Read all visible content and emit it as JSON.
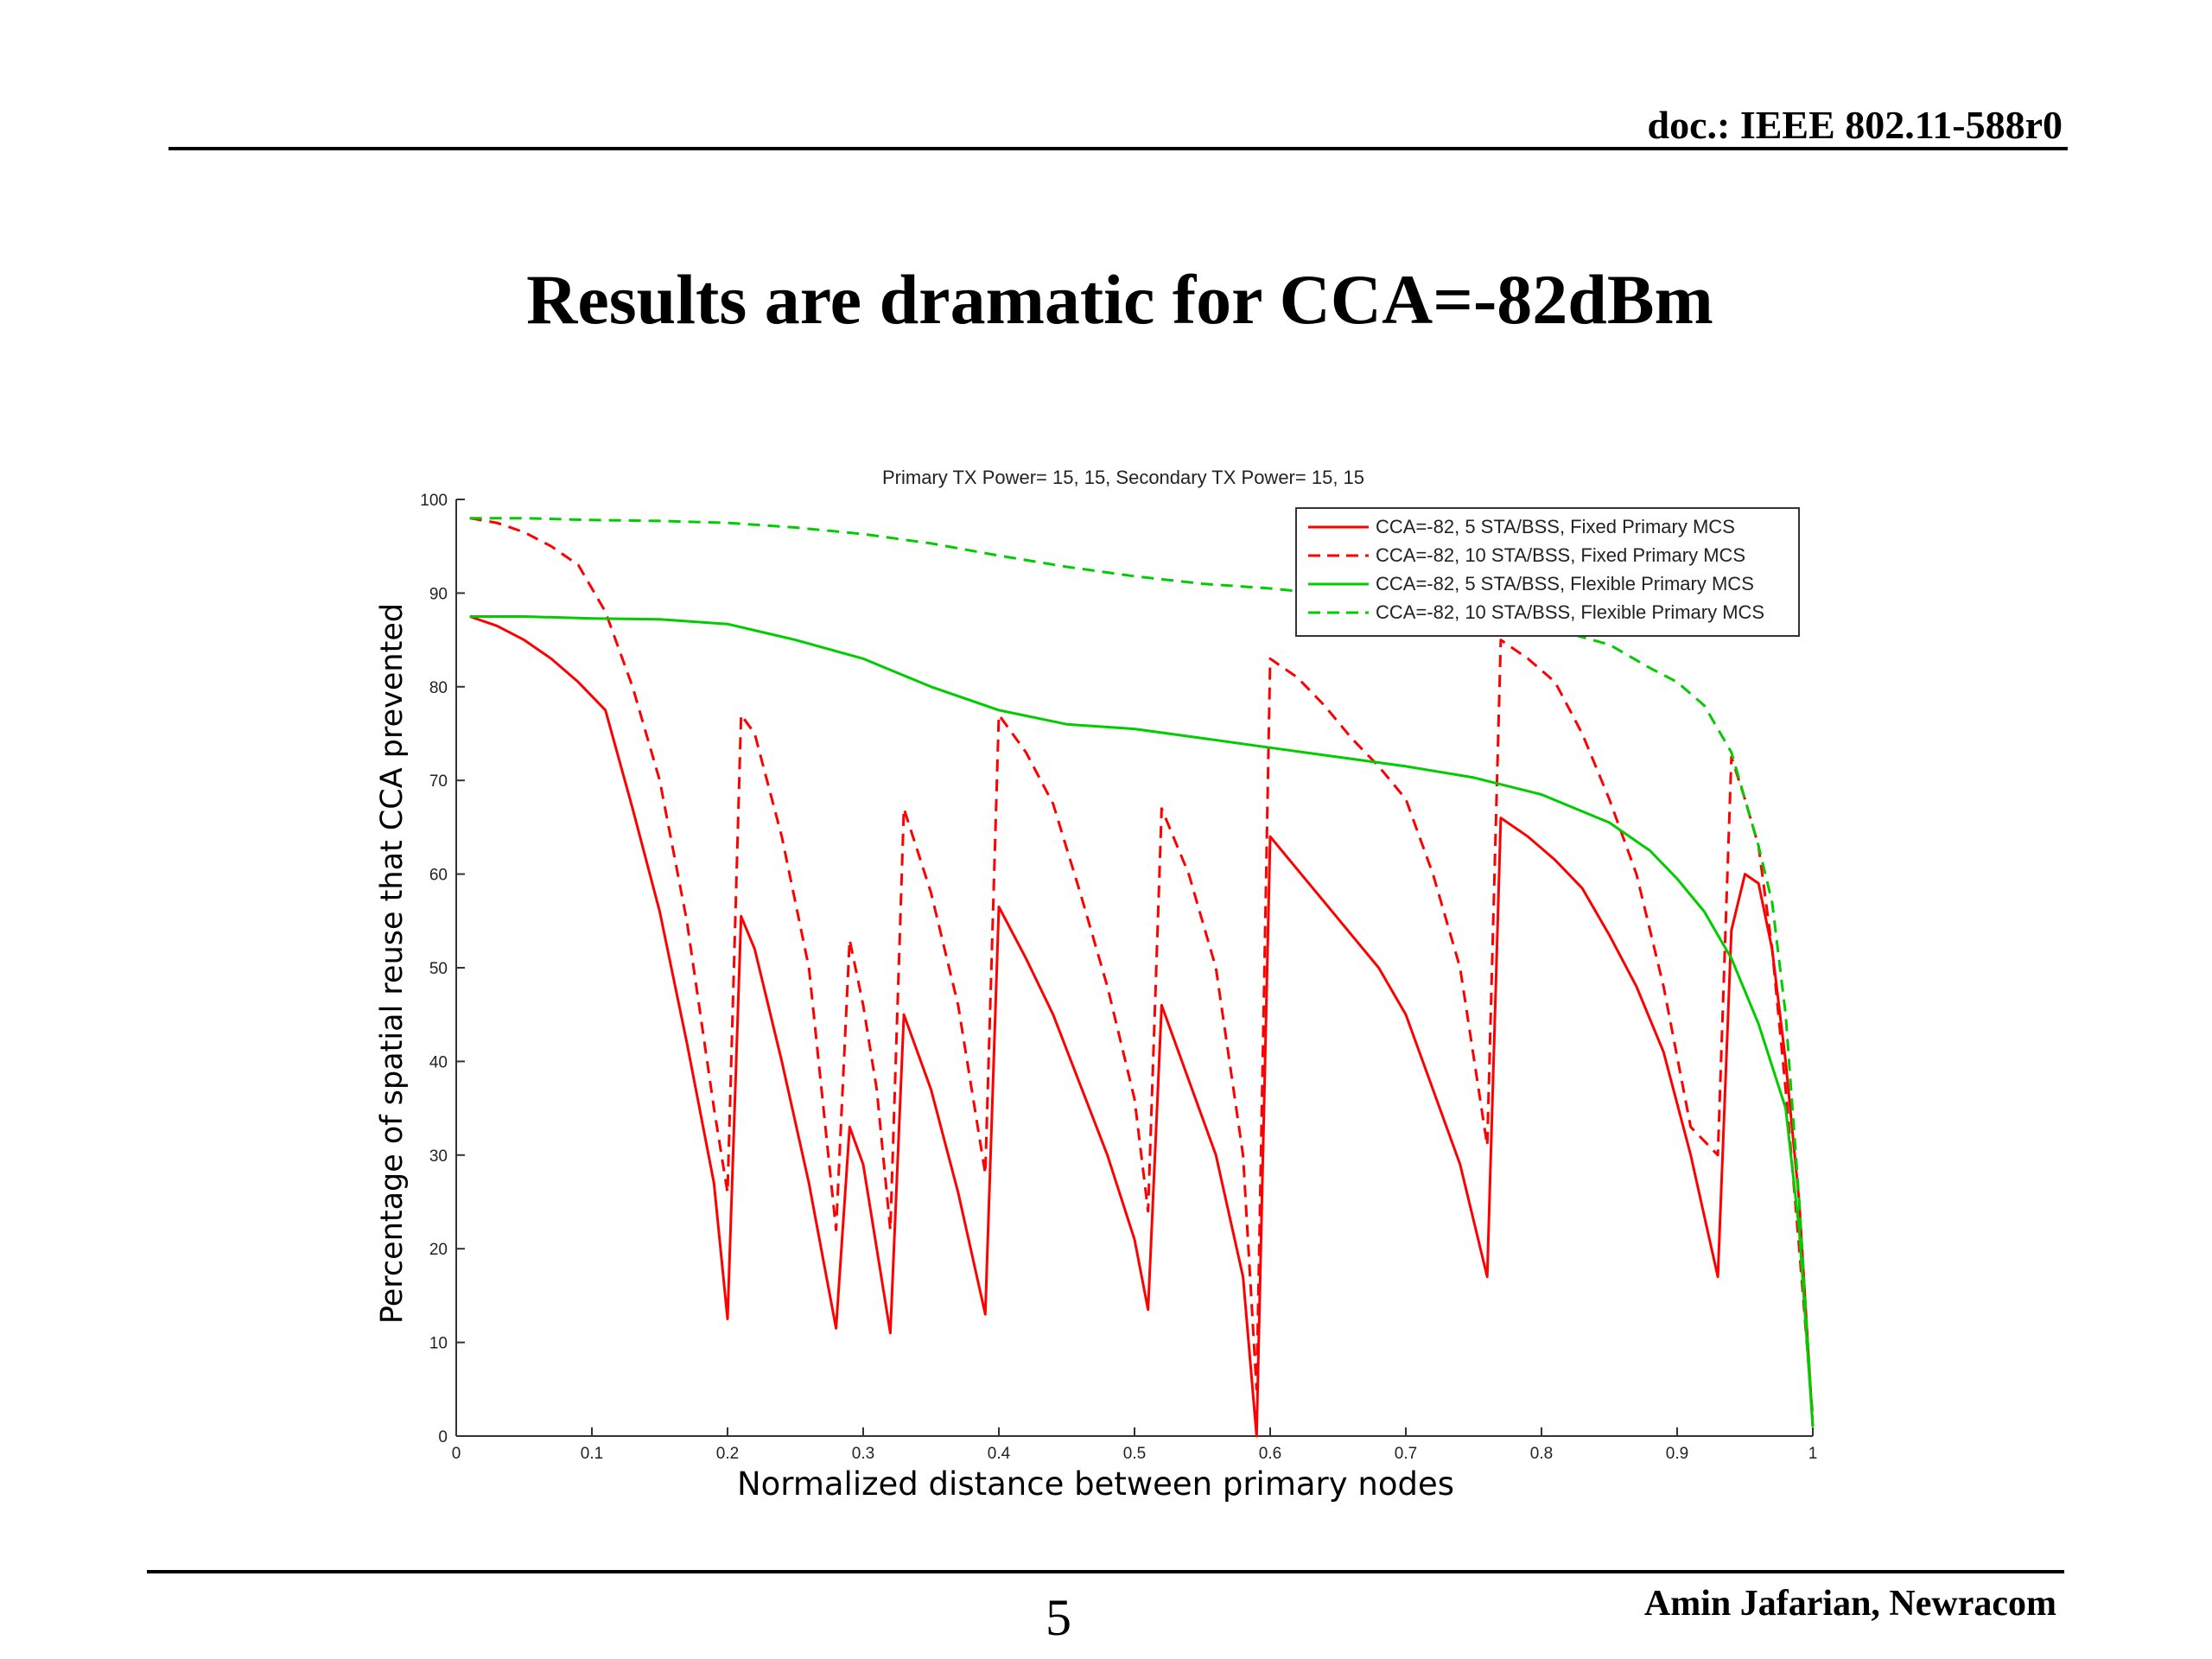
{
  "header": {
    "doc_label": "doc.: IEEE 802.11-588r0"
  },
  "slide": {
    "title": "Results are dramatic for CCA=-82dBm"
  },
  "footer": {
    "page_number": "5",
    "author": "Amin Jafarian, Newracom"
  },
  "colors": {
    "red": "#ff0000",
    "green": "#00cc00"
  },
  "chart_data": {
    "type": "line",
    "title": "Primary TX Power= 15, 15, Secondary TX Power= 15, 15",
    "xlabel": "Normalized distance between primary nodes",
    "ylabel": "Percentage of spatial reuse that CCA prevented",
    "xlim": [
      0,
      1
    ],
    "ylim": [
      0,
      100
    ],
    "xticks": [
      0,
      0.1,
      0.2,
      0.3,
      0.4,
      0.5,
      0.6,
      0.7,
      0.8,
      0.9,
      1
    ],
    "xtick_labels": [
      "0",
      "0.1",
      "0.2",
      "0.3",
      "0.4",
      "0.5",
      "0.6",
      "0.7",
      "0.8",
      "0.9",
      "1"
    ],
    "yticks": [
      0,
      10,
      20,
      30,
      40,
      50,
      60,
      70,
      80,
      90,
      100
    ],
    "ytick_labels": [
      "0",
      "10",
      "20",
      "30",
      "40",
      "50",
      "60",
      "70",
      "80",
      "90",
      "100"
    ],
    "grid": false,
    "legend_position": "top-right",
    "series": [
      {
        "name": "CCA=-82, 5 STA/BSS, Fixed Primary MCS",
        "color": "#ff0000",
        "dash": "solid",
        "points": [
          [
            0.01,
            87.5
          ],
          [
            0.03,
            86.5
          ],
          [
            0.05,
            85
          ],
          [
            0.07,
            83
          ],
          [
            0.09,
            80.5
          ],
          [
            0.11,
            77.5
          ],
          [
            0.13,
            67
          ],
          [
            0.15,
            56
          ],
          [
            0.17,
            42
          ],
          [
            0.19,
            27
          ],
          [
            0.2,
            12.5
          ],
          [
            0.21,
            55.5
          ],
          [
            0.22,
            52
          ],
          [
            0.24,
            40
          ],
          [
            0.26,
            27
          ],
          [
            0.28,
            11.5
          ],
          [
            0.29,
            33
          ],
          [
            0.3,
            29
          ],
          [
            0.32,
            11
          ],
          [
            0.33,
            45
          ],
          [
            0.35,
            37
          ],
          [
            0.37,
            26
          ],
          [
            0.39,
            13
          ],
          [
            0.4,
            56.5
          ],
          [
            0.42,
            51
          ],
          [
            0.44,
            45
          ],
          [
            0.46,
            37.5
          ],
          [
            0.48,
            30
          ],
          [
            0.5,
            21
          ],
          [
            0.51,
            13.5
          ],
          [
            0.52,
            46
          ],
          [
            0.54,
            38
          ],
          [
            0.56,
            30
          ],
          [
            0.58,
            17
          ],
          [
            0.59,
            0
          ],
          [
            0.6,
            64
          ],
          [
            0.62,
            60.5
          ],
          [
            0.64,
            57
          ],
          [
            0.66,
            53.5
          ],
          [
            0.68,
            50
          ],
          [
            0.7,
            45
          ],
          [
            0.72,
            37
          ],
          [
            0.74,
            29
          ],
          [
            0.76,
            17
          ],
          [
            0.77,
            66
          ],
          [
            0.79,
            64
          ],
          [
            0.81,
            61.5
          ],
          [
            0.83,
            58.5
          ],
          [
            0.85,
            53.5
          ],
          [
            0.87,
            48
          ],
          [
            0.89,
            41
          ],
          [
            0.91,
            30
          ],
          [
            0.93,
            17
          ],
          [
            0.94,
            54
          ],
          [
            0.95,
            60
          ],
          [
            0.96,
            59
          ],
          [
            0.97,
            52
          ],
          [
            0.98,
            40
          ],
          [
            0.99,
            25
          ],
          [
            1.0,
            1
          ]
        ]
      },
      {
        "name": "CCA=-82, 10 STA/BSS, Fixed Primary MCS",
        "color": "#ff0000",
        "dash": "dashed",
        "points": [
          [
            0.01,
            98
          ],
          [
            0.03,
            97.5
          ],
          [
            0.05,
            96.5
          ],
          [
            0.07,
            95
          ],
          [
            0.09,
            93
          ],
          [
            0.11,
            88
          ],
          [
            0.13,
            80
          ],
          [
            0.15,
            70
          ],
          [
            0.17,
            55
          ],
          [
            0.19,
            35
          ],
          [
            0.2,
            26
          ],
          [
            0.21,
            77
          ],
          [
            0.22,
            75
          ],
          [
            0.24,
            64
          ],
          [
            0.26,
            50
          ],
          [
            0.28,
            22
          ],
          [
            0.29,
            53
          ],
          [
            0.3,
            46
          ],
          [
            0.31,
            37
          ],
          [
            0.32,
            22
          ],
          [
            0.33,
            67
          ],
          [
            0.35,
            58
          ],
          [
            0.37,
            46
          ],
          [
            0.39,
            28
          ],
          [
            0.4,
            77
          ],
          [
            0.42,
            73
          ],
          [
            0.44,
            67.5
          ],
          [
            0.46,
            58
          ],
          [
            0.48,
            48
          ],
          [
            0.5,
            36
          ],
          [
            0.51,
            24
          ],
          [
            0.52,
            67
          ],
          [
            0.54,
            60
          ],
          [
            0.56,
            50
          ],
          [
            0.58,
            30
          ],
          [
            0.59,
            5
          ],
          [
            0.6,
            83
          ],
          [
            0.62,
            81
          ],
          [
            0.64,
            78
          ],
          [
            0.66,
            74.5
          ],
          [
            0.68,
            71.5
          ],
          [
            0.7,
            68
          ],
          [
            0.72,
            60
          ],
          [
            0.74,
            50
          ],
          [
            0.76,
            31
          ],
          [
            0.77,
            85
          ],
          [
            0.79,
            83
          ],
          [
            0.81,
            80.5
          ],
          [
            0.83,
            75
          ],
          [
            0.85,
            68
          ],
          [
            0.87,
            60
          ],
          [
            0.89,
            48
          ],
          [
            0.91,
            33
          ],
          [
            0.93,
            30
          ],
          [
            0.94,
            72.5
          ],
          [
            0.95,
            68
          ],
          [
            0.96,
            63
          ],
          [
            0.97,
            52
          ],
          [
            0.98,
            37
          ],
          [
            0.99,
            20
          ],
          [
            1.0,
            2
          ]
        ]
      },
      {
        "name": "CCA=-82, 5 STA/BSS, Flexible Primary MCS",
        "color": "#00cc00",
        "dash": "solid",
        "points": [
          [
            0.01,
            87.5
          ],
          [
            0.05,
            87.5
          ],
          [
            0.1,
            87.3
          ],
          [
            0.15,
            87.2
          ],
          [
            0.2,
            86.7
          ],
          [
            0.25,
            85
          ],
          [
            0.3,
            83
          ],
          [
            0.35,
            80
          ],
          [
            0.4,
            77.5
          ],
          [
            0.45,
            76
          ],
          [
            0.5,
            75.5
          ],
          [
            0.55,
            74.5
          ],
          [
            0.6,
            73.5
          ],
          [
            0.65,
            72.5
          ],
          [
            0.7,
            71.5
          ],
          [
            0.75,
            70.3
          ],
          [
            0.8,
            68.5
          ],
          [
            0.85,
            65.5
          ],
          [
            0.88,
            62.5
          ],
          [
            0.9,
            59.5
          ],
          [
            0.92,
            56
          ],
          [
            0.94,
            51
          ],
          [
            0.96,
            44
          ],
          [
            0.98,
            35
          ],
          [
            0.99,
            22
          ],
          [
            1.0,
            1
          ]
        ]
      },
      {
        "name": "CCA=-82, 10 STA/BSS, Flexible Primary MCS",
        "color": "#00cc00",
        "dash": "dashed",
        "points": [
          [
            0.01,
            98
          ],
          [
            0.05,
            98
          ],
          [
            0.1,
            97.8
          ],
          [
            0.15,
            97.7
          ],
          [
            0.2,
            97.5
          ],
          [
            0.25,
            97
          ],
          [
            0.3,
            96.3
          ],
          [
            0.35,
            95.3
          ],
          [
            0.4,
            94
          ],
          [
            0.45,
            92.8
          ],
          [
            0.5,
            91.8
          ],
          [
            0.55,
            91
          ],
          [
            0.6,
            90.5
          ],
          [
            0.65,
            89.8
          ],
          [
            0.7,
            89
          ],
          [
            0.75,
            88
          ],
          [
            0.8,
            86.5
          ],
          [
            0.85,
            84.5
          ],
          [
            0.88,
            82
          ],
          [
            0.9,
            80.5
          ],
          [
            0.92,
            78
          ],
          [
            0.94,
            73
          ],
          [
            0.96,
            63
          ],
          [
            0.97,
            57
          ],
          [
            0.98,
            45
          ],
          [
            0.99,
            25
          ],
          [
            1.0,
            1
          ]
        ]
      }
    ]
  }
}
